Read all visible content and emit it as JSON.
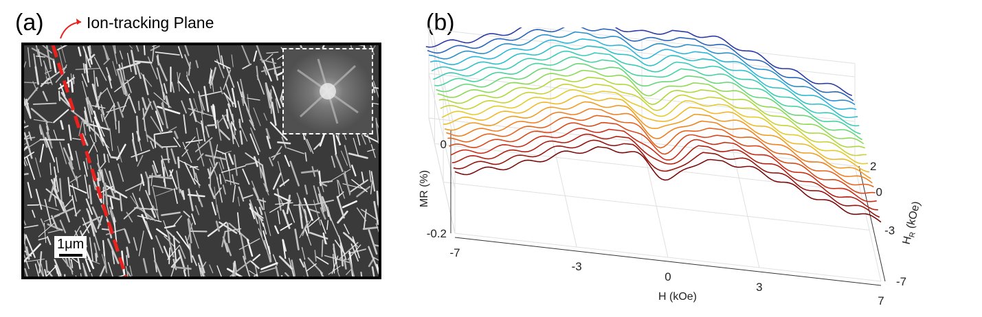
{
  "panels": {
    "a": {
      "label": "(a)",
      "annotation": "Ion-tracking Plane",
      "scale_bar": "1μm"
    },
    "b": {
      "label": "(b)"
    }
  },
  "colors": {
    "tracking_line": "#e8231f",
    "arrow": "#e8231f",
    "series_low": "#7a0a0a",
    "series_high": "#2a3aa8"
  },
  "chart_data": {
    "type": "line",
    "projection": "3d waterfall",
    "xlabel": "H (kOe)",
    "ylabel": "H_R (kOe)",
    "zlabel": "MR (%)",
    "x_ticks": [
      "-7",
      "-3",
      "0",
      "3",
      "7"
    ],
    "y_ticks": [
      "2",
      "0",
      "-3",
      "-7"
    ],
    "z_ticks": [
      "0",
      "-0.2"
    ],
    "xlim": [
      -7,
      7
    ],
    "ylim": [
      -7,
      2
    ],
    "zlim": [
      -0.2,
      0
    ],
    "grid": true,
    "series": [
      {
        "hr": -7.0,
        "dip": -0.18
      },
      {
        "hr": -6.5,
        "dip": -0.18
      },
      {
        "hr": -6.0,
        "dip": -0.17
      },
      {
        "hr": -5.5,
        "dip": -0.17
      },
      {
        "hr": -5.0,
        "dip": -0.16
      },
      {
        "hr": -4.5,
        "dip": -0.16
      },
      {
        "hr": -4.0,
        "dip": -0.15
      },
      {
        "hr": -3.5,
        "dip": -0.14
      },
      {
        "hr": -3.0,
        "dip": -0.14
      },
      {
        "hr": -2.5,
        "dip": -0.13
      },
      {
        "hr": -2.0,
        "dip": -0.12
      },
      {
        "hr": -1.5,
        "dip": -0.12
      },
      {
        "hr": -1.0,
        "dip": -0.11
      },
      {
        "hr": -0.5,
        "dip": -0.1
      },
      {
        "hr": 0.0,
        "dip": -0.09
      },
      {
        "hr": 0.5,
        "dip": -0.08
      },
      {
        "hr": 1.0,
        "dip": -0.07
      },
      {
        "hr": 1.5,
        "dip": -0.06
      },
      {
        "hr": 2.0,
        "dip": -0.05
      },
      {
        "hr": 2.5,
        "dip": -0.04
      },
      {
        "hr": 3.0,
        "dip": -0.03
      }
    ]
  }
}
